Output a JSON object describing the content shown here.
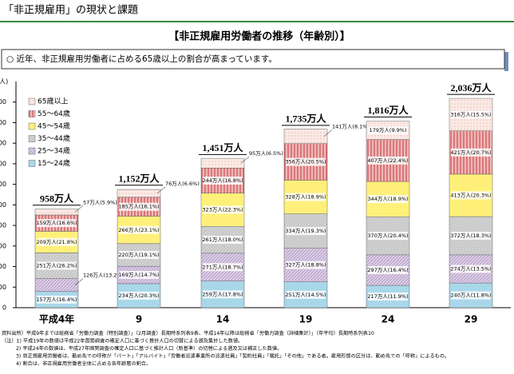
{
  "header": {
    "title": "「非正規雇用」の現状と課題"
  },
  "summary": "○ 近年、非正規雇用労働者に占める65歳以上の割合が高まっています。",
  "chart_data": {
    "type": "bar",
    "stacked": true,
    "title": "【非正規雇用労働者の推移（年齢別）】",
    "y_label": "(万人)",
    "categories": [
      "平成4年",
      "9",
      "14",
      "19",
      "24",
      "29"
    ],
    "series": [
      {
        "name": "15～24歳",
        "color": "#a9d7ea",
        "values": [
          157,
          234,
          259,
          251,
          217,
          240
        ],
        "value_labels": [
          "157万人(16.4%)",
          "234万人(20.3%)",
          "259万人(17.8%)",
          "251万人(14.5%)",
          "217万人(11.9%)",
          "240万人(11.8%)"
        ]
      },
      {
        "name": "25～34歳",
        "color": "#dccbe6",
        "values": [
          126,
          169,
          271,
          327,
          297,
          274
        ],
        "value_labels": [
          "126万人(13.2%)",
          "169万人(14.7%)",
          "271万人(18.7%)",
          "327万人(18.8%)",
          "297万人(16.4%)",
          "274万人(13.5%)"
        ]
      },
      {
        "name": "35～44歳",
        "color": "#d4d4d4",
        "values": [
          251,
          220,
          261,
          334,
          370,
          372
        ],
        "value_labels": [
          "251万人(26.2%)",
          "220万人(19.1%)",
          "261万人(18.0%)",
          "334万人(19.3%)",
          "370万人(20.4%)",
          "372万人(18.3%)"
        ]
      },
      {
        "name": "45～54歳",
        "color": "#fff07a",
        "values": [
          209,
          266,
          323,
          328,
          344,
          413
        ],
        "value_labels": [
          "209万人(21.8%)",
          "266万人(23.1%)",
          "323万人(22.3%)",
          "328万人(18.9%)",
          "344万人(18.9%)",
          "413万人(20.3%)"
        ]
      },
      {
        "name": "55～64歳",
        "color": "#efb8b8",
        "values": [
          159,
          185,
          244,
          356,
          407,
          421
        ],
        "value_labels": [
          "159万人(16.6%)",
          "185万人(16.1%)",
          "244万人(16.8%)",
          "356万人(20.5%)",
          "407万人(22.4%)",
          "421万人(20.7%)"
        ]
      },
      {
        "name": "65歳以上",
        "color": "#fbeae4",
        "values": [
          57,
          76,
          95,
          141,
          179,
          316
        ],
        "value_labels": [
          "57万人(5.9%)",
          "76万人(6.6%)",
          "95万人(6.5%)",
          "141万人(8.1%)",
          "179万人(9.9%)",
          "316万人(15.5%)"
        ]
      }
    ],
    "totals": [
      958,
      1152,
      1451,
      1735,
      1816,
      2036
    ],
    "total_labels": [
      "958万人",
      "1,152万人",
      "1,451万人",
      "1,735万人",
      "1,816万人",
      "2,036万人"
    ],
    "ylim": [
      0,
      2200
    ],
    "yticks": [
      0,
      200,
      400,
      600,
      800,
      1000,
      1200,
      1400,
      1600,
      1800,
      2000
    ]
  },
  "footnotes": [
    "資料出所）平成9年までは総務省「労働力調査（特別調査）」（2月調査）長期時系列表9表、平成14年以降は総務省「労働力調査（詳細集計）」（年平均）長期時系列表10",
    "（注）1) 平成19年の数値は平成22年国勢調査の確定人口に基づく推計人口の切替による遡及集計した数値。",
    "2) 平成24年の数値は、平成27年国勢調査の確定人口に基づく推計人口（新基準）の切替による遡及又は補正した数値。",
    "3) 非正規雇用労働者は、勤め先での呼称が「パート」「アルバイト」「労働者派遣事業所の派遣社員」「契約社員」「嘱託」「その他」である者。雇用形態の区分は、勤め先での「呼称」によるもの。",
    "4) 割合は、非正規雇用労働者全体に占める各年齢層の割合。"
  ]
}
